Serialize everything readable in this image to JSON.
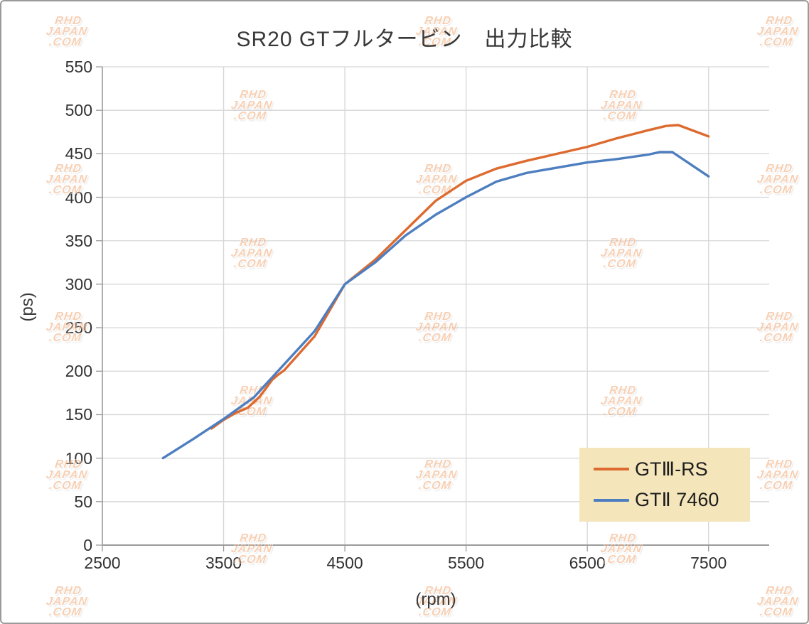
{
  "page": {
    "title": "SR20 GTフルタービン　出力比較"
  },
  "watermark": {
    "lines": [
      "RHD",
      "JAPAN",
      ".COM"
    ],
    "color": "#f0a26b"
  },
  "legend": {
    "background": "#f4e5bb",
    "items": [
      {
        "label": "GTⅢ-RS",
        "color": "#dd6a2f"
      },
      {
        "label": "GTⅡ 7460",
        "color": "#4d7ebf"
      }
    ]
  },
  "chart_data": {
    "type": "line",
    "title": "SR20 GTフルタービン　出力比較",
    "xlabel": "(rpm)",
    "ylabel": "(ps)",
    "xlim": [
      2500,
      8000
    ],
    "ylim": [
      0,
      550
    ],
    "x_ticks": [
      2500,
      3500,
      4500,
      5500,
      6500,
      7500
    ],
    "y_ticks": [
      0,
      50,
      100,
      150,
      200,
      250,
      300,
      350,
      400,
      450,
      500,
      550
    ],
    "grid": true,
    "gridline_color": "#d6d6d6",
    "axis_color": "#9b9b9b",
    "legend_position": "bottom-right",
    "series": [
      {
        "name": "GTⅢ-RS",
        "color": "#dd6a2f",
        "points": [
          [
            3400,
            134
          ],
          [
            3500,
            144
          ],
          [
            3600,
            152
          ],
          [
            3700,
            158
          ],
          [
            3800,
            171
          ],
          [
            3900,
            190
          ],
          [
            3950,
            196
          ],
          [
            4000,
            201
          ],
          [
            4250,
            240
          ],
          [
            4500,
            300
          ],
          [
            4750,
            328
          ],
          [
            5000,
            362
          ],
          [
            5250,
            396
          ],
          [
            5500,
            419
          ],
          [
            5750,
            433
          ],
          [
            6000,
            442
          ],
          [
            6250,
            450
          ],
          [
            6500,
            458
          ],
          [
            6750,
            468
          ],
          [
            7000,
            477
          ],
          [
            7150,
            482
          ],
          [
            7250,
            483
          ],
          [
            7500,
            470
          ]
        ]
      },
      {
        "name": "GTⅡ 7460",
        "color": "#4d7ebf",
        "points": [
          [
            3000,
            100
          ],
          [
            3250,
            122
          ],
          [
            3500,
            145
          ],
          [
            3750,
            170
          ],
          [
            4000,
            208
          ],
          [
            4250,
            246
          ],
          [
            4500,
            300
          ],
          [
            4750,
            325
          ],
          [
            5000,
            356
          ],
          [
            5250,
            380
          ],
          [
            5400,
            392
          ],
          [
            5500,
            400
          ],
          [
            5750,
            418
          ],
          [
            6000,
            428
          ],
          [
            6250,
            434
          ],
          [
            6500,
            440
          ],
          [
            6750,
            444
          ],
          [
            7000,
            449
          ],
          [
            7100,
            452
          ],
          [
            7200,
            452
          ],
          [
            7500,
            424
          ]
        ]
      }
    ]
  }
}
